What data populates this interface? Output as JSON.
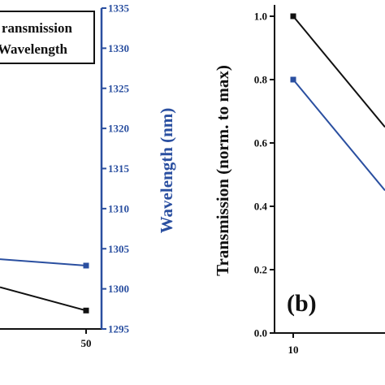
{
  "colors": {
    "black": "#111111",
    "blue": "#2a4fa0",
    "background": "#ffffff"
  },
  "chart_data": [
    {
      "type": "line",
      "panel": "a",
      "legend": {
        "placement": "top-left",
        "entries": [
          {
            "label": "Transmission",
            "display": "ransmission",
            "color": "#111111"
          },
          {
            "label": "Wavelength",
            "display": "Wavelength",
            "color": "#2a4fa0"
          }
        ]
      },
      "y2label": "Wavelength (nm)",
      "y2lim": [
        1295,
        1335
      ],
      "y2ticks": [
        1295,
        1300,
        1305,
        1310,
        1315,
        1320,
        1325,
        1330,
        1335
      ],
      "xticks_visible": [
        50
      ],
      "series": [
        {
          "name": "Transmission",
          "color": "#111111",
          "marker": "square",
          "x": [
            50
          ],
          "y_wavelength_scale": [
            1297.3
          ],
          "segment_start_y": 1300.2
        },
        {
          "name": "Wavelength",
          "color": "#2a4fa0",
          "marker": "square",
          "x": [
            50
          ],
          "y": [
            1302.9
          ],
          "segment_start_y": 1303.7
        }
      ],
      "grid": false
    },
    {
      "type": "line",
      "panel": "b",
      "panel_label": "(b)",
      "ylabel": "Transmission (norm. to max)",
      "ylim": [
        0.0,
        1.0
      ],
      "yticks": [
        "0.0",
        "0.2",
        "0.4",
        "0.6",
        "0.8",
        "1.0"
      ],
      "xticks_visible": [
        "10"
      ],
      "series": [
        {
          "name": "",
          "color": "#111111",
          "marker": "square",
          "x": [
            10
          ],
          "y": [
            1.0
          ],
          "trend_to_y": 0.65
        },
        {
          "name": "",
          "color": "#2a4fa0",
          "marker": "square",
          "x": [
            10
          ],
          "y": [
            0.8
          ],
          "trend_to_y": 0.45
        }
      ],
      "grid": false
    }
  ]
}
